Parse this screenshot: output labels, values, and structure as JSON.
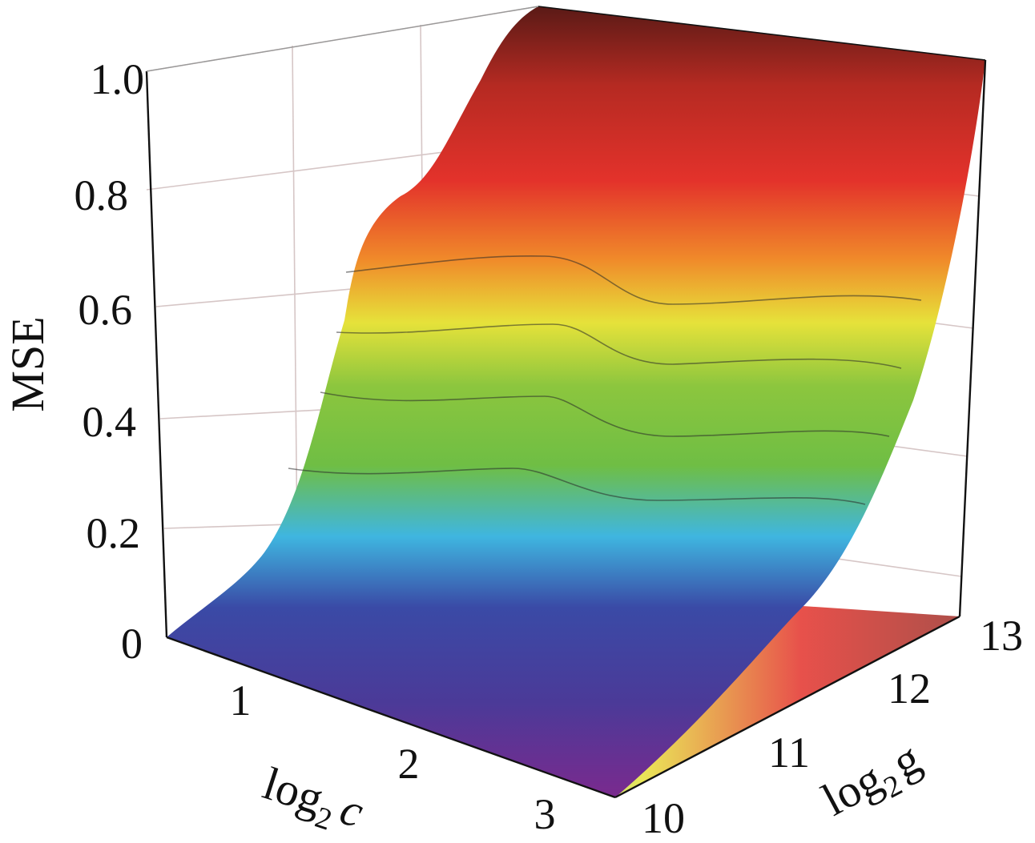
{
  "chart_data": {
    "type": "surface",
    "zlabel": "MSE",
    "xlabel": "log",
    "xlabel_sub": "2",
    "xlabel_var": "c",
    "ylabel": "log",
    "ylabel_sub": "2",
    "ylabel_var": "g",
    "x_ticks": [
      "1",
      "2",
      "3"
    ],
    "y_ticks": [
      "10",
      "11",
      "12",
      "13"
    ],
    "z_ticks": [
      "0",
      "0.2",
      "0.4",
      "0.6",
      "0.8",
      "1.0"
    ],
    "zlim": [
      0,
      1.0
    ],
    "colormap": [
      "#6e2a8c",
      "#3a4aa6",
      "#3fb6e0",
      "#6fbe44",
      "#e6e23a",
      "#f08a2a",
      "#e3322b",
      "#5a1a16"
    ],
    "surface_profile": {
      "description_points": [
        {
          "log2g": 10.0,
          "mse": 0.0
        },
        {
          "log2g": 10.5,
          "mse": 0.05
        },
        {
          "log2g": 11.0,
          "mse": 0.2
        },
        {
          "log2g": 11.5,
          "mse": 0.45
        },
        {
          "log2g": 12.0,
          "mse": 0.7
        },
        {
          "log2g": 12.5,
          "mse": 0.88
        },
        {
          "log2g": 13.0,
          "mse": 0.98
        }
      ]
    }
  }
}
